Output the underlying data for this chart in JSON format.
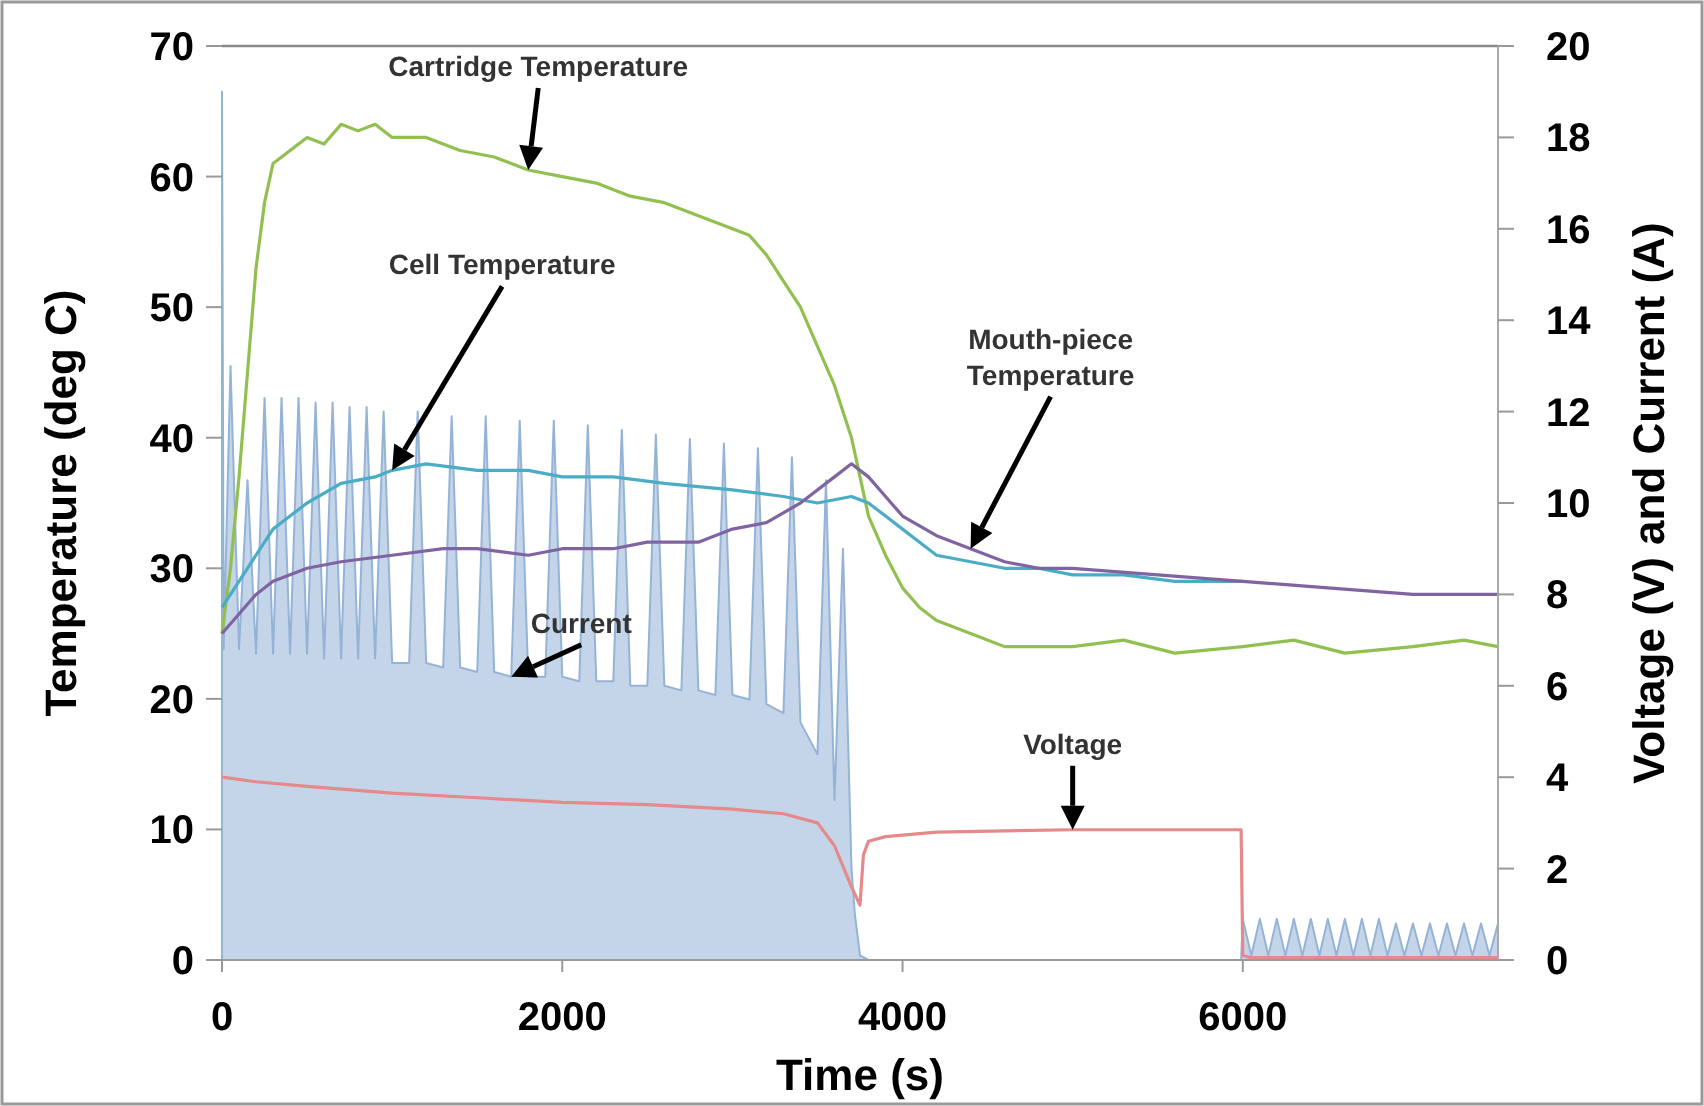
{
  "chart_data": {
    "type": "line",
    "xlabel": "Time (s)",
    "ylabel": "Temperature (deg C)",
    "y2label": "Voltage (V) and Current (A)",
    "xlim": [
      0,
      7500
    ],
    "xticks": [
      0,
      2000,
      4000,
      6000
    ],
    "ylim": [
      0,
      70
    ],
    "yticks": [
      0,
      10,
      20,
      30,
      40,
      50,
      60,
      70
    ],
    "y2lim": [
      0,
      20
    ],
    "y2ticks": [
      0,
      2,
      4,
      6,
      8,
      10,
      12,
      14,
      16,
      18,
      20
    ],
    "grid": false,
    "series": [
      {
        "name": "Current",
        "type": "area",
        "axis": "y2",
        "color": "#95b3d7",
        "x": [
          0,
          10,
          50,
          100,
          150,
          200,
          250,
          300,
          350,
          400,
          450,
          500,
          550,
          600,
          650,
          700,
          750,
          800,
          850,
          900,
          950,
          1000,
          1100,
          1150,
          1200,
          1300,
          1350,
          1400,
          1500,
          1550,
          1600,
          1700,
          1750,
          1800,
          1900,
          1950,
          2000,
          2100,
          2150,
          2200,
          2300,
          2350,
          2400,
          2500,
          2550,
          2600,
          2700,
          2750,
          2800,
          2900,
          2950,
          3000,
          3100,
          3150,
          3200,
          3300,
          3350,
          3400,
          3500,
          3550,
          3600,
          3650,
          3700,
          3720,
          3750,
          3800,
          4000,
          5000,
          5990,
          6000,
          6050,
          6100,
          6150,
          6200,
          6250,
          6300,
          6350,
          6400,
          6450,
          6500,
          6550,
          6600,
          6650,
          6700,
          6750,
          6800,
          6850,
          6900,
          6950,
          7000,
          7050,
          7100,
          7150,
          7200,
          7250,
          7300,
          7350,
          7400,
          7450,
          7500
        ],
        "values": [
          19,
          6.8,
          13,
          6.8,
          10.5,
          6.7,
          12.3,
          6.7,
          12.3,
          6.7,
          12.3,
          6.7,
          12.2,
          6.6,
          12.2,
          6.6,
          12.1,
          6.6,
          12.1,
          6.6,
          12,
          6.5,
          6.5,
          12,
          6.5,
          6.4,
          11.9,
          6.4,
          6.3,
          11.9,
          6.3,
          6.2,
          11.8,
          6.2,
          6.2,
          11.8,
          6.2,
          6.1,
          11.7,
          6.1,
          6.1,
          11.6,
          6,
          6,
          11.5,
          6,
          5.9,
          11.4,
          5.9,
          5.8,
          11.3,
          5.8,
          5.7,
          11.2,
          5.6,
          5.4,
          11,
          5.2,
          4.5,
          10.5,
          3.5,
          9,
          2,
          1,
          0.1,
          0,
          0,
          0,
          0,
          0.9,
          0.1,
          0.9,
          0.1,
          0.9,
          0.1,
          0.9,
          0.1,
          0.9,
          0.1,
          0.9,
          0.1,
          0.9,
          0.1,
          0.9,
          0.1,
          0.9,
          0.1,
          0.8,
          0.1,
          0.8,
          0.1,
          0.8,
          0.1,
          0.8,
          0.1,
          0.8,
          0.1,
          0.8,
          0.1,
          0.8
        ]
      },
      {
        "name": "Voltage",
        "axis": "y2",
        "color": "#e6898a",
        "x": [
          0,
          200,
          500,
          1000,
          1500,
          2000,
          2500,
          3000,
          3300,
          3500,
          3600,
          3700,
          3750,
          3770,
          3800,
          3900,
          4200,
          5000,
          5990,
          6000,
          6050,
          7500
        ],
        "values": [
          4,
          3.9,
          3.8,
          3.65,
          3.55,
          3.45,
          3.4,
          3.3,
          3.2,
          3,
          2.5,
          1.6,
          1.2,
          2.3,
          2.6,
          2.7,
          2.8,
          2.85,
          2.85,
          0.1,
          0.05,
          0.05
        ]
      },
      {
        "name": "Cartridge Temperature",
        "axis": "y",
        "color": "#92c050",
        "x": [
          0,
          50,
          100,
          150,
          200,
          250,
          300,
          400,
          500,
          600,
          700,
          800,
          900,
          1000,
          1200,
          1400,
          1600,
          1800,
          2000,
          2200,
          2400,
          2600,
          2800,
          3000,
          3100,
          3200,
          3300,
          3400,
          3500,
          3600,
          3700,
          3750,
          3800,
          3900,
          4000,
          4100,
          4200,
          4400,
          4600,
          4800,
          5000,
          5300,
          5600,
          6000,
          6300,
          6600,
          7000,
          7300,
          7500
        ],
        "values": [
          25,
          30,
          37,
          45,
          53,
          58,
          61,
          62,
          63,
          62.5,
          64,
          63.5,
          64,
          63,
          63,
          62,
          61.5,
          60.5,
          60,
          59.5,
          58.5,
          58,
          57,
          56,
          55.5,
          54,
          52,
          50,
          47,
          44,
          40,
          37,
          34,
          31,
          28.5,
          27,
          26,
          25,
          24,
          24,
          24,
          24.5,
          23.5,
          24,
          24.5,
          23.5,
          24,
          24.5,
          24
        ]
      },
      {
        "name": "Cell Temperature",
        "axis": "y",
        "color": "#4bacc6",
        "x": [
          0,
          100,
          200,
          300,
          400,
          500,
          700,
          900,
          1000,
          1200,
          1500,
          1800,
          2000,
          2300,
          2600,
          3000,
          3300,
          3500,
          3700,
          3800,
          3900,
          4000,
          4100,
          4200,
          4400,
          4600,
          4800,
          5000,
          5300,
          5600,
          6000
        ],
        "values": [
          27,
          29,
          31,
          33,
          34,
          35,
          36.5,
          37,
          37.5,
          38,
          37.5,
          37.5,
          37,
          37,
          36.5,
          36,
          35.5,
          35,
          35.5,
          35,
          34,
          33,
          32,
          31,
          30.5,
          30,
          30,
          29.5,
          29.5,
          29,
          29
        ]
      },
      {
        "name": "Mouth-piece Temperature",
        "axis": "y",
        "color": "#8064a2",
        "x": [
          0,
          100,
          200,
          300,
          500,
          700,
          1000,
          1300,
          1500,
          1800,
          2000,
          2300,
          2500,
          2800,
          3000,
          3200,
          3400,
          3600,
          3700,
          3750,
          3800,
          3900,
          4000,
          4200,
          4400,
          4600,
          4800,
          5000,
          5500,
          6000,
          6500,
          7000,
          7500
        ],
        "values": [
          25,
          26.5,
          28,
          29,
          30,
          30.5,
          31,
          31.5,
          31.5,
          31,
          31.5,
          31.5,
          32,
          32,
          33,
          33.5,
          35,
          37,
          38,
          37.5,
          37,
          35.5,
          34,
          32.5,
          31.5,
          30.5,
          30,
          30,
          29.5,
          29,
          28.5,
          28,
          28
        ]
      }
    ]
  }
}
